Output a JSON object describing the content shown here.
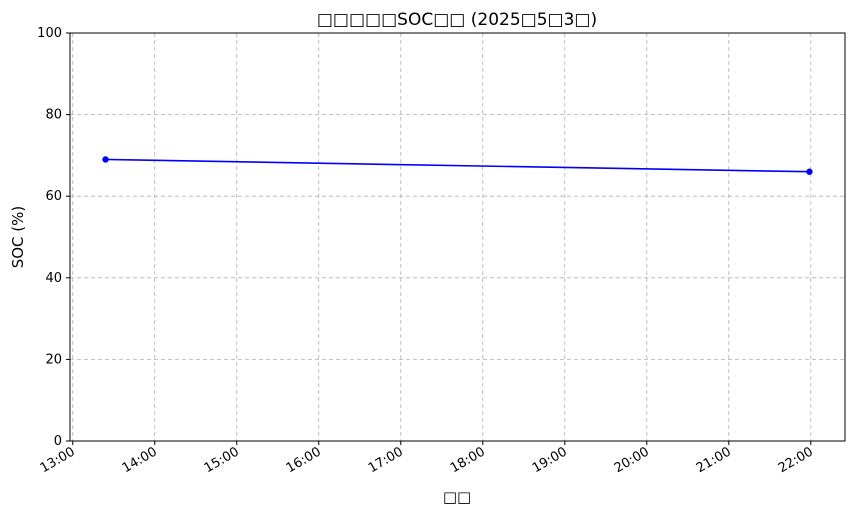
{
  "chart_data": {
    "type": "line",
    "title": "□□□□□SOC□□ (2025□5□3□)",
    "xlabel": "□□",
    "ylabel": "SOC (%)",
    "x_ticks": [
      "13:00",
      "14:00",
      "15:00",
      "16:00",
      "17:00",
      "18:00",
      "19:00",
      "20:00",
      "21:00",
      "22:00"
    ],
    "y_ticks": [
      "0",
      "20",
      "40",
      "60",
      "80",
      "100"
    ],
    "xlim": [
      "12:58",
      "22:25"
    ],
    "ylim": [
      0,
      100
    ],
    "grid": true,
    "series": [
      {
        "x": [
          "13:24",
          "21:59"
        ],
        "values": [
          69,
          66
        ],
        "color": "#0000ff",
        "marker": "circle"
      }
    ]
  }
}
